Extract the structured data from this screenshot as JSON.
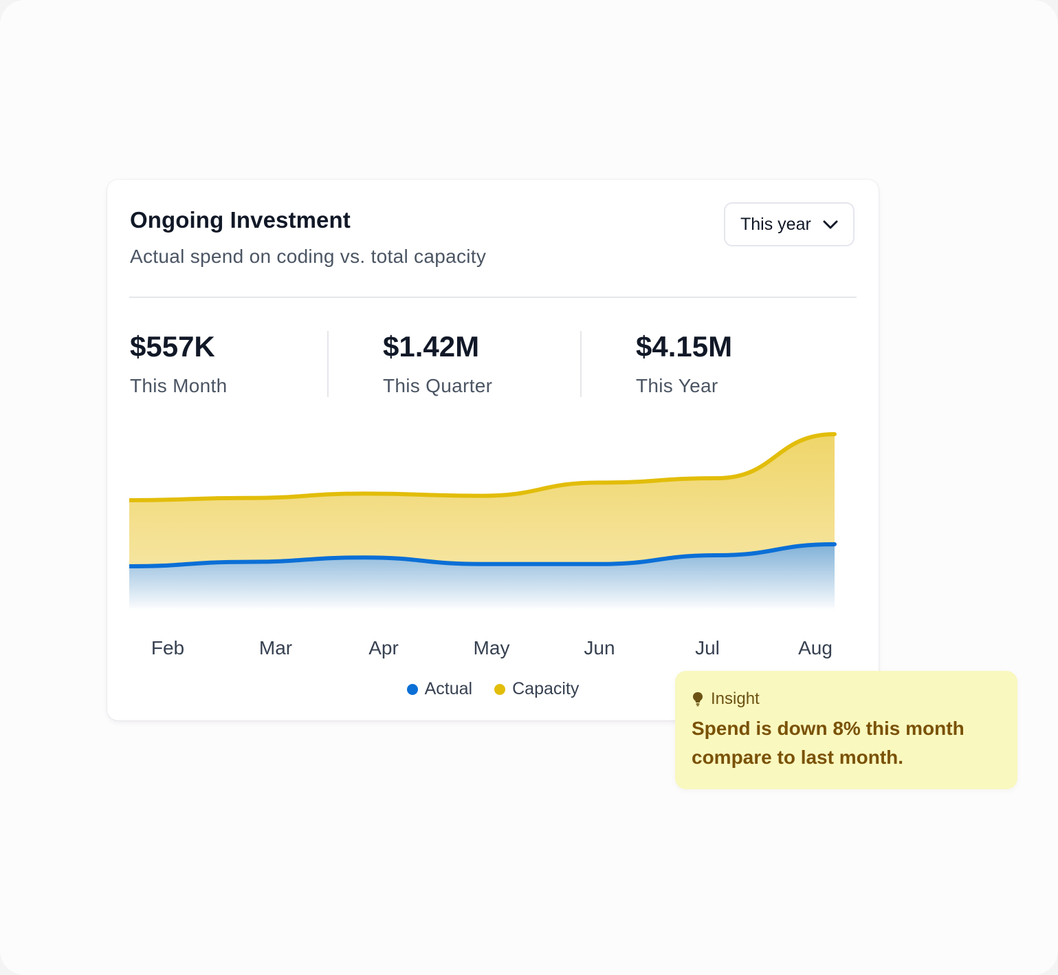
{
  "card": {
    "title": "Ongoing Investment",
    "subtitle": "Actual spend on coding vs. total capacity",
    "period_selector": {
      "value": "This year",
      "icon": "chevron-down-icon"
    }
  },
  "stats": [
    {
      "value": "$557K",
      "label": "This Month"
    },
    {
      "value": "$1.42M",
      "label": "This Quarter"
    },
    {
      "value": "$4.15M",
      "label": "This Year"
    }
  ],
  "chart_data": {
    "type": "area",
    "categories": [
      "Feb",
      "Mar",
      "Apr",
      "May",
      "Jun",
      "Jul",
      "Aug"
    ],
    "series": [
      {
        "name": "Actual",
        "color": "#0b6fd6",
        "values": [
          40,
          42,
          44,
          41,
          41,
          45,
          50
        ]
      },
      {
        "name": "Capacity",
        "color": "#e2bd0a",
        "values": [
          70,
          71,
          73,
          72,
          78,
          80,
          100
        ]
      }
    ],
    "ylim": [
      0,
      100
    ],
    "grid": false,
    "legend_position": "bottom-center"
  },
  "insight": {
    "icon": "lightbulb-icon",
    "heading": "Insight",
    "text_line1": "Spend is down 8% this month",
    "text_line2": "compare to last month."
  }
}
